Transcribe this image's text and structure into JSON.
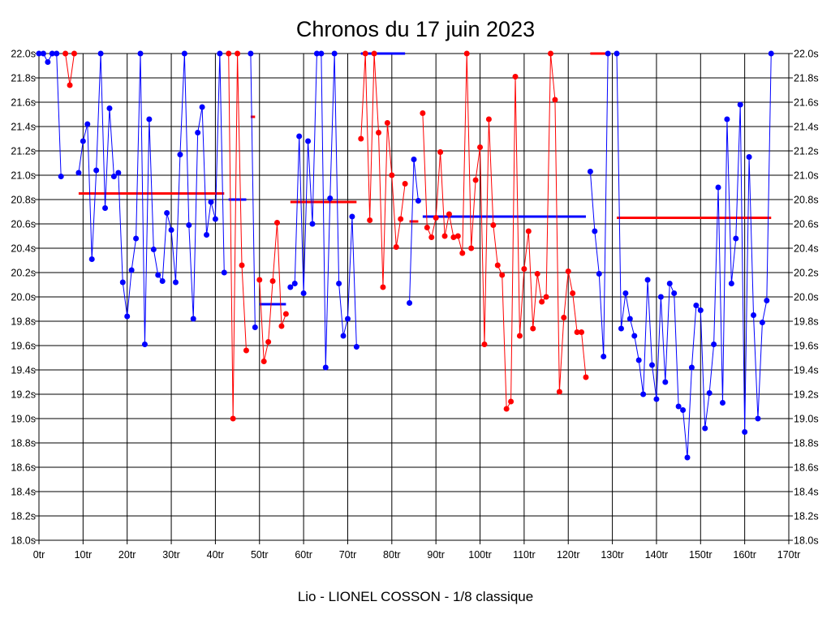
{
  "chart_data": {
    "type": "line",
    "title": "Chronos du 17 juin 2023",
    "caption": "Lio - LIONEL COSSON - 1/8 classique",
    "xlabel": "",
    "ylabel": "",
    "xlim": [
      0,
      170
    ],
    "ylim": [
      18.0,
      22.0
    ],
    "grid": true,
    "x_ticks": [
      0,
      10,
      20,
      30,
      40,
      50,
      60,
      70,
      80,
      90,
      100,
      110,
      120,
      130,
      140,
      150,
      160,
      170
    ],
    "x_tick_labels": [
      "0tr",
      "10tr",
      "20tr",
      "30tr",
      "40tr",
      "50tr",
      "60tr",
      "70tr",
      "80tr",
      "90tr",
      "100tr",
      "110tr",
      "120tr",
      "130tr",
      "140tr",
      "150tr",
      "160tr",
      "170tr"
    ],
    "y_ticks": [
      18.0,
      18.2,
      18.4,
      18.6,
      18.8,
      19.0,
      19.2,
      19.4,
      19.6,
      19.8,
      20.0,
      20.2,
      20.4,
      20.6,
      20.8,
      21.0,
      21.2,
      21.4,
      21.6,
      21.8,
      22.0
    ],
    "y_tick_labels": [
      "18.0s",
      "18.2s",
      "18.4s",
      "18.6s",
      "18.8s",
      "19.0s",
      "19.2s",
      "19.4s",
      "19.6s",
      "19.8s",
      "20.0s",
      "20.2s",
      "20.4s",
      "20.6s",
      "20.8s",
      "21.0s",
      "21.2s",
      "21.4s",
      "21.6s",
      "21.8s",
      "22.0s"
    ],
    "colors": {
      "blue": "#0000ff",
      "red": "#ff0000",
      "grid": "#000000"
    },
    "series": [
      {
        "name": "blue-1",
        "color": "#0000ff",
        "points": [
          [
            0,
            22.0
          ],
          [
            1,
            22.0
          ],
          [
            2,
            21.93
          ],
          [
            3,
            22.0
          ],
          [
            4,
            22.0
          ],
          [
            5,
            20.99
          ]
        ]
      },
      {
        "name": "red-1",
        "color": "#ff0000",
        "points": [
          [
            6,
            22.0
          ],
          [
            7,
            21.74
          ],
          [
            8,
            22.0
          ]
        ]
      },
      {
        "name": "blue-2",
        "color": "#0000ff",
        "points": [
          [
            9,
            21.02
          ],
          [
            10,
            21.28
          ],
          [
            11,
            21.42
          ],
          [
            12,
            20.31
          ],
          [
            13,
            21.04
          ],
          [
            14,
            22.0
          ],
          [
            15,
            20.73
          ],
          [
            16,
            21.55
          ],
          [
            17,
            20.99
          ],
          [
            18,
            21.02
          ],
          [
            19,
            20.12
          ],
          [
            20,
            19.84
          ],
          [
            21,
            20.22
          ],
          [
            22,
            20.48
          ],
          [
            23,
            22.0
          ],
          [
            24,
            19.61
          ],
          [
            25,
            21.46
          ],
          [
            26,
            20.39
          ],
          [
            27,
            20.18
          ],
          [
            28,
            20.13
          ],
          [
            29,
            20.69
          ],
          [
            30,
            20.55
          ],
          [
            31,
            20.12
          ],
          [
            32,
            21.17
          ],
          [
            33,
            22.0
          ],
          [
            34,
            20.59
          ],
          [
            35,
            19.82
          ],
          [
            36,
            21.35
          ],
          [
            37,
            21.56
          ],
          [
            38,
            20.51
          ],
          [
            39,
            20.78
          ],
          [
            40,
            20.64
          ],
          [
            41,
            22.0
          ],
          [
            42,
            20.2
          ]
        ]
      },
      {
        "name": "red-2",
        "color": "#ff0000",
        "points": [
          [
            43,
            22.0
          ],
          [
            44,
            19.0
          ],
          [
            45,
            22.0
          ],
          [
            46,
            20.26
          ],
          [
            47,
            19.56
          ]
        ]
      },
      {
        "name": "blue-3",
        "color": "#0000ff",
        "points": [
          [
            48,
            22.0
          ],
          [
            49,
            19.75
          ]
        ]
      },
      {
        "name": "red-3",
        "color": "#ff0000",
        "points": [
          [
            50,
            20.14
          ],
          [
            51,
            19.47
          ],
          [
            52,
            19.63
          ],
          [
            53,
            20.13
          ],
          [
            54,
            20.61
          ],
          [
            55,
            19.76
          ],
          [
            56,
            19.86
          ]
        ]
      },
      {
        "name": "blue-4",
        "color": "#0000ff",
        "points": [
          [
            57,
            20.08
          ],
          [
            58,
            20.11
          ],
          [
            59,
            21.32
          ],
          [
            60,
            20.03
          ],
          [
            61,
            21.28
          ],
          [
            62,
            20.6
          ],
          [
            63,
            22.0
          ],
          [
            64,
            22.0
          ],
          [
            65,
            19.42
          ],
          [
            66,
            20.81
          ],
          [
            67,
            22.0
          ],
          [
            68,
            20.11
          ],
          [
            69,
            19.68
          ],
          [
            70,
            19.82
          ],
          [
            71,
            20.66
          ],
          [
            72,
            19.59
          ]
        ]
      },
      {
        "name": "red-4",
        "color": "#ff0000",
        "points": [
          [
            73,
            21.3
          ],
          [
            74,
            22.0
          ],
          [
            75,
            20.63
          ],
          [
            76,
            22.0
          ],
          [
            77,
            21.35
          ],
          [
            78,
            20.08
          ],
          [
            79,
            21.43
          ],
          [
            80,
            21.0
          ],
          [
            81,
            20.41
          ],
          [
            82,
            20.64
          ],
          [
            83,
            20.93
          ]
        ]
      },
      {
        "name": "blue-5",
        "color": "#0000ff",
        "points": [
          [
            84,
            19.95
          ],
          [
            85,
            21.13
          ],
          [
            86,
            20.79
          ]
        ]
      },
      {
        "name": "red-5",
        "color": "#ff0000",
        "points": [
          [
            87,
            21.51
          ],
          [
            88,
            20.57
          ],
          [
            89,
            20.49
          ],
          [
            90,
            20.65
          ],
          [
            91,
            21.19
          ],
          [
            92,
            20.5
          ],
          [
            93,
            20.68
          ],
          [
            94,
            20.49
          ],
          [
            95,
            20.5
          ],
          [
            96,
            20.36
          ],
          [
            97,
            22.0
          ],
          [
            98,
            20.4
          ],
          [
            99,
            20.96
          ],
          [
            100,
            21.23
          ],
          [
            101,
            19.61
          ],
          [
            102,
            21.46
          ],
          [
            103,
            20.59
          ],
          [
            104,
            20.26
          ],
          [
            105,
            20.18
          ],
          [
            106,
            19.08
          ],
          [
            107,
            19.14
          ],
          [
            108,
            21.81
          ],
          [
            109,
            19.68
          ],
          [
            110,
            20.23
          ],
          [
            111,
            20.54
          ],
          [
            112,
            19.74
          ],
          [
            113,
            20.19
          ],
          [
            114,
            19.96
          ],
          [
            115,
            20.0
          ],
          [
            116,
            22.0
          ],
          [
            117,
            21.62
          ],
          [
            118,
            19.22
          ],
          [
            119,
            19.83
          ],
          [
            120,
            20.21
          ],
          [
            121,
            20.03
          ],
          [
            122,
            19.71
          ],
          [
            123,
            19.71
          ],
          [
            124,
            19.34
          ]
        ]
      },
      {
        "name": "blue-6",
        "color": "#0000ff",
        "points": [
          [
            125,
            21.03
          ],
          [
            126,
            20.54
          ],
          [
            127,
            20.19
          ],
          [
            128,
            19.51
          ],
          [
            129,
            22.0
          ]
        ]
      },
      {
        "name": "blue-7",
        "color": "#0000ff",
        "points": [
          [
            131,
            22.0
          ],
          [
            132,
            19.74
          ],
          [
            133,
            20.03
          ],
          [
            134,
            19.82
          ],
          [
            135,
            19.68
          ],
          [
            136,
            19.48
          ],
          [
            137,
            19.2
          ],
          [
            138,
            20.14
          ],
          [
            139,
            19.44
          ],
          [
            140,
            19.16
          ],
          [
            141,
            20.0
          ],
          [
            142,
            19.3
          ],
          [
            143,
            20.11
          ],
          [
            144,
            20.03
          ],
          [
            145,
            19.1
          ],
          [
            146,
            19.07
          ],
          [
            147,
            18.68
          ],
          [
            148,
            19.42
          ],
          [
            149,
            19.93
          ],
          [
            150,
            19.89
          ],
          [
            151,
            18.92
          ],
          [
            152,
            19.21
          ],
          [
            153,
            19.61
          ],
          [
            154,
            20.9
          ],
          [
            155,
            19.13
          ],
          [
            156,
            21.46
          ],
          [
            157,
            20.11
          ],
          [
            158,
            20.48
          ],
          [
            159,
            21.58
          ],
          [
            160,
            18.89
          ],
          [
            161,
            21.15
          ],
          [
            162,
            19.85
          ],
          [
            163,
            19.0
          ],
          [
            164,
            19.79
          ],
          [
            165,
            19.97
          ],
          [
            166,
            22.0
          ]
        ]
      }
    ],
    "averages": [
      {
        "color": "#ff0000",
        "x_start": 9,
        "x_end": 42,
        "value": 20.85
      },
      {
        "color": "#0000ff",
        "x_start": 43,
        "x_end": 47,
        "value": 20.8
      },
      {
        "color": "#ff0000",
        "x_start": 48,
        "x_end": 49,
        "value": 21.48
      },
      {
        "color": "#0000ff",
        "x_start": 50,
        "x_end": 56,
        "value": 19.94
      },
      {
        "color": "#ff0000",
        "x_start": 57,
        "x_end": 72,
        "value": 20.78
      },
      {
        "color": "#0000ff",
        "x_start": 73,
        "x_end": 83,
        "value": 22.0
      },
      {
        "color": "#ff0000",
        "x_start": 84,
        "x_end": 86,
        "value": 20.62
      },
      {
        "color": "#0000ff",
        "x_start": 87,
        "x_end": 124,
        "value": 20.66
      },
      {
        "color": "#ff0000",
        "x_start": 125,
        "x_end": 129,
        "value": 22.0
      },
      {
        "color": "#ff0000",
        "x_start": 131,
        "x_end": 166,
        "value": 20.65
      }
    ]
  }
}
